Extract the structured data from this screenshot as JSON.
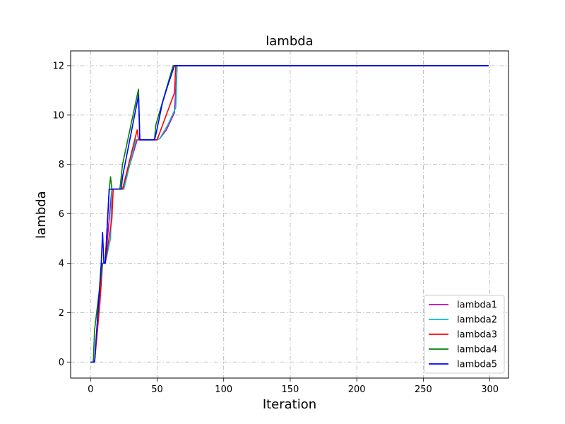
{
  "chart_data": {
    "type": "line",
    "title": "lambda",
    "xlabel": "Iteration",
    "ylabel": "lambda",
    "xlim": [
      -15,
      314
    ],
    "ylim": [
      -0.65,
      12.6
    ],
    "xticks": [
      0,
      50,
      100,
      150,
      200,
      250,
      300
    ],
    "yticks": [
      0,
      2,
      4,
      6,
      8,
      10,
      12
    ],
    "grid": true,
    "legend_position": "lower-right",
    "series": [
      {
        "name": "lambda1",
        "color": "#bf00bf",
        "points": [
          [
            0,
            0
          ],
          [
            3,
            0
          ],
          [
            8,
            3.5
          ],
          [
            9,
            4
          ],
          [
            11,
            4
          ],
          [
            16,
            7
          ],
          [
            24,
            7
          ],
          [
            35,
            9
          ],
          [
            50,
            9
          ],
          [
            52,
            9.05
          ],
          [
            57,
            9.4
          ],
          [
            63,
            10.1
          ],
          [
            65,
            12
          ],
          [
            299,
            12
          ]
        ]
      },
      {
        "name": "lambda2",
        "color": "#00bfbf",
        "points": [
          [
            0,
            0
          ],
          [
            3,
            0
          ],
          [
            8,
            3.8
          ],
          [
            9,
            4
          ],
          [
            11,
            4
          ],
          [
            15,
            5
          ],
          [
            16,
            7
          ],
          [
            24,
            7
          ],
          [
            25,
            7
          ],
          [
            34,
            9
          ],
          [
            50,
            9
          ],
          [
            52,
            9.05
          ],
          [
            58,
            9.6
          ],
          [
            64,
            10.3
          ],
          [
            65,
            12
          ],
          [
            299,
            12
          ]
        ]
      },
      {
        "name": "lambda3",
        "color": "#ff0000",
        "points": [
          [
            0,
            0
          ],
          [
            3,
            0
          ],
          [
            7,
            2.4
          ],
          [
            9,
            4
          ],
          [
            11,
            4
          ],
          [
            16,
            5.8
          ],
          [
            17,
            7
          ],
          [
            24,
            7
          ],
          [
            35,
            9.4
          ],
          [
            36,
            9
          ],
          [
            50,
            9
          ],
          [
            63,
            10.9
          ],
          [
            64,
            12
          ],
          [
            299,
            12
          ]
        ]
      },
      {
        "name": "lambda4",
        "color": "#008000",
        "points": [
          [
            0,
            0
          ],
          [
            2,
            0
          ],
          [
            3,
            1.3
          ],
          [
            9,
            4
          ],
          [
            11,
            4
          ],
          [
            14,
            7
          ],
          [
            15,
            7.5
          ],
          [
            16,
            7
          ],
          [
            22,
            7
          ],
          [
            24,
            8
          ],
          [
            36,
            11.05
          ],
          [
            37,
            9
          ],
          [
            48,
            9
          ],
          [
            49,
            9.6
          ],
          [
            62,
            12
          ],
          [
            299,
            12
          ]
        ]
      },
      {
        "name": "lambda5",
        "color": "#0000ff",
        "points": [
          [
            0,
            0
          ],
          [
            3,
            0
          ],
          [
            8,
            4
          ],
          [
            9,
            5.25
          ],
          [
            10,
            4
          ],
          [
            11,
            4
          ],
          [
            14,
            7
          ],
          [
            23,
            7
          ],
          [
            24,
            7.5
          ],
          [
            36,
            10.8
          ],
          [
            37,
            9
          ],
          [
            48,
            9
          ],
          [
            49,
            9.2
          ],
          [
            54,
            10.5
          ],
          [
            58,
            11.2
          ],
          [
            63,
            12
          ],
          [
            299,
            12
          ]
        ]
      }
    ]
  }
}
